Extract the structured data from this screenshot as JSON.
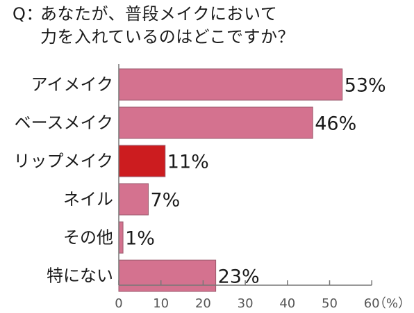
{
  "title_prefix": "Q：",
  "title_line1": "あなたが、普段メイクにおいて",
  "title_line2": "力を入れているのはどこですか？",
  "chart_data": {
    "type": "bar",
    "orientation": "horizontal",
    "title": "Q：あなたが、普段メイクにおいて 力を入れているのはどこですか？",
    "categories": [
      "アイメイク",
      "ベースメイク",
      "リップメイク",
      "ネイル",
      "その他",
      "特にない"
    ],
    "values": [
      53,
      46,
      11,
      7,
      1,
      23
    ],
    "value_labels": [
      "53%",
      "46%",
      "11%",
      "7%",
      "1%",
      "23%"
    ],
    "xlim": [
      0,
      60
    ],
    "xticks": [
      0,
      10,
      20,
      30,
      40,
      50,
      60
    ],
    "xtick_labels": [
      "0",
      "10",
      "20",
      "30",
      "40",
      "50",
      "60"
    ],
    "xunit": "（%）",
    "grid": false,
    "bar_color": "#d4728f",
    "highlight_color": "#cc1c1f",
    "highlight_index": 2
  }
}
